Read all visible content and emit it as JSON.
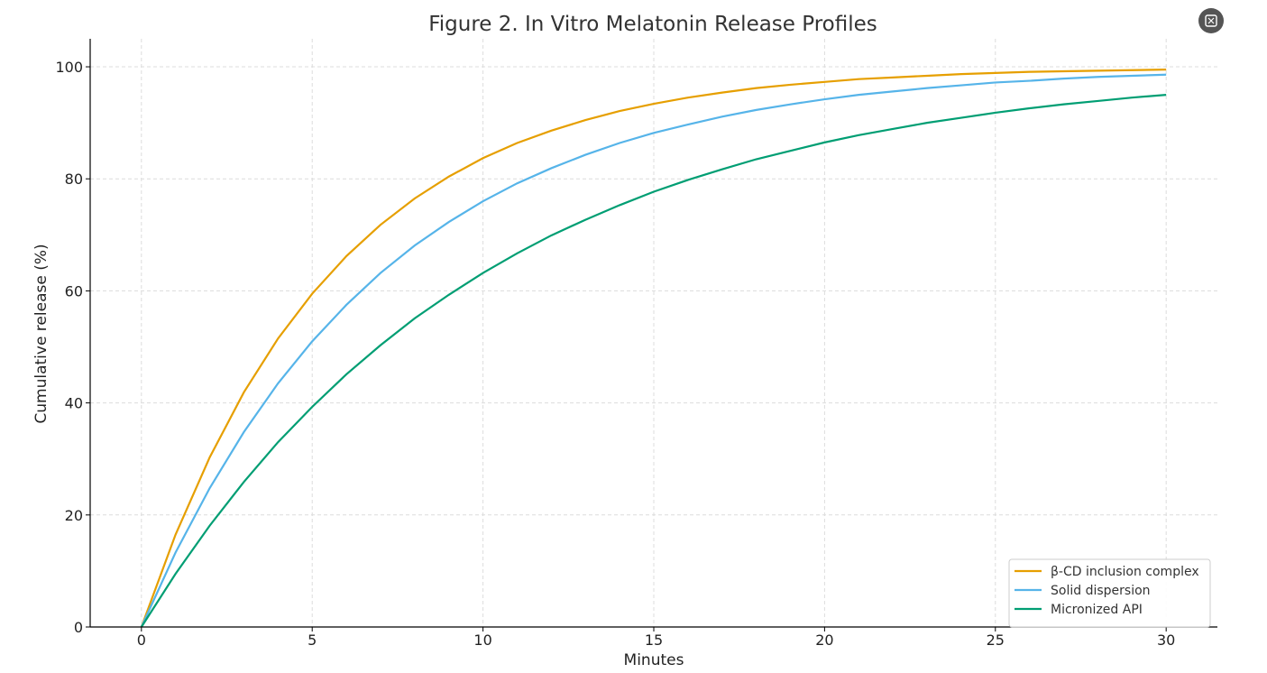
{
  "chart_data": {
    "type": "line",
    "title": "Figure 2. In Vitro Melatonin Release Profiles",
    "xlabel": "Minutes",
    "ylabel": "Cumulative release (%)",
    "xlim": [
      -1.5,
      31.5
    ],
    "ylim": [
      0,
      105
    ],
    "xticks": [
      0,
      5,
      10,
      15,
      20,
      25,
      30
    ],
    "yticks": [
      0,
      20,
      40,
      60,
      80,
      100
    ],
    "grid": true,
    "legend_position": "lower-right",
    "x": [
      0,
      1,
      2,
      3,
      4,
      5,
      6,
      7,
      8,
      9,
      10,
      11,
      12,
      13,
      14,
      15,
      16,
      17,
      18,
      19,
      20,
      21,
      22,
      23,
      24,
      25,
      26,
      27,
      28,
      29,
      30
    ],
    "series": [
      {
        "name": "β-CD inclusion complex",
        "color": "#e69f00",
        "values": [
          0,
          16.5,
          30.3,
          41.9,
          51.5,
          59.5,
          66.2,
          71.8,
          76.5,
          80.4,
          83.7,
          86.4,
          88.6,
          90.5,
          92.1,
          93.4,
          94.5,
          95.4,
          96.2,
          96.8,
          97.3,
          97.8,
          98.1,
          98.4,
          98.7,
          98.9,
          99.1,
          99.2,
          99.3,
          99.4,
          99.5
        ]
      },
      {
        "name": "Solid dispersion",
        "color": "#56b4e9",
        "values": [
          0,
          13.3,
          24.8,
          34.8,
          43.5,
          51.0,
          57.5,
          63.2,
          68.1,
          72.3,
          76.0,
          79.2,
          81.9,
          84.3,
          86.4,
          88.2,
          89.7,
          91.1,
          92.3,
          93.3,
          94.2,
          95.0,
          95.6,
          96.2,
          96.7,
          97.2,
          97.5,
          97.9,
          98.2,
          98.4,
          98.6
        ]
      },
      {
        "name": "Micronized API",
        "color": "#009e73",
        "values": [
          0,
          9.5,
          18.1,
          25.9,
          33.0,
          39.3,
          45.1,
          50.3,
          55.1,
          59.3,
          63.2,
          66.7,
          69.9,
          72.7,
          75.3,
          77.7,
          79.8,
          81.7,
          83.5,
          85.0,
          86.5,
          87.8,
          88.9,
          90.0,
          90.9,
          91.8,
          92.6,
          93.3,
          93.9,
          94.5,
          95.0
        ]
      }
    ]
  },
  "icons": {
    "expand": "expand-icon"
  }
}
